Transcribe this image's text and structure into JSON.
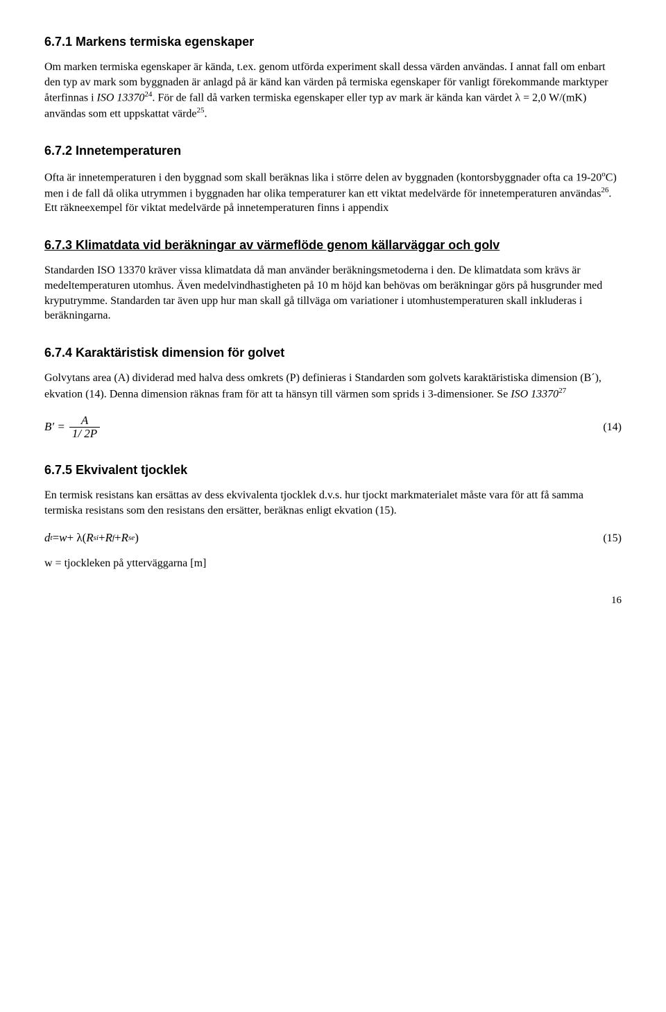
{
  "s1": {
    "heading": "6.7.1 Markens termiska egenskaper",
    "p1_a": "Om marken termiska egenskaper är kända, t.ex. genom utförda experiment skall dessa värden användas. I annat fall om enbart den typ av mark som byggnaden är anlagd på är känd kan värden på termiska egenskaper för vanligt förekommande marktyper återfinnas i ",
    "p1_iso": "ISO 13370",
    "p1_sup1": "24",
    "p1_b": ". För de fall då varken termiska egenskaper eller typ av mark är kända kan värdet λ = 2,0 W/(mK) användas som ett uppskattat värde",
    "p1_sup2": "25",
    "p1_c": "."
  },
  "s2": {
    "heading": "6.7.2 Innetemperaturen",
    "p1_a": "Ofta är innetemperaturen i den byggnad som skall beräknas lika i större delen av byggnaden (kontorsbyggnader ofta ca 19-20",
    "p1_deg": "o",
    "p1_b": "C) men i de fall då olika utrymmen i byggnaden har olika temperaturer kan ett viktat medelvärde för innetemperaturen användas",
    "p1_sup": "26",
    "p1_c": ". Ett räkneexempel för viktat medelvärde på innetemperaturen finns i appendix"
  },
  "s3": {
    "heading": "6.7.3 Klimatdata vid beräkningar av värmeflöde genom källarväggar och golv",
    "p1": "Standarden ISO 13370 kräver vissa klimatdata då man använder beräkningsmetoderna i den. De klimatdata som krävs är medeltemperaturen utomhus. Även medelvindhastigheten på 10 m höjd kan behövas om beräkningar görs på husgrunder med kryputrymme. Standarden tar även upp hur man skall gå tillväga om variationer i utomhustemperaturen skall inkluderas i beräkningarna."
  },
  "s4": {
    "heading": "6.7.4 Karaktäristisk dimension för golvet",
    "p1_a": "Golvytans area (A) dividerad med halva dess omkrets (P) definieras i Standarden som golvets karaktäristiska dimension (B´), ekvation (14). Denna dimension räknas fram för att ta hänsyn till värmen som sprids i 3-dimensioner. Se ",
    "p1_iso": "ISO 13370",
    "p1_sup": "27",
    "eq_lhs": "B′ =",
    "eq_num": "A",
    "eq_den": "1/ 2P",
    "eq_no": "(14)"
  },
  "s5": {
    "heading": "6.7.5 Ekvivalent tjocklek",
    "p1": "En termisk resistans kan ersättas av dess ekvivalenta tjocklek d.v.s. hur tjockt markmaterialet måste vara för att få samma termiska resistans som den resistans den ersätter, beräknas enligt ekvation (15).",
    "eq_dt": "d",
    "eq_t": "t",
    "eq_eq": " = ",
    "eq_w": "w",
    "eq_plus": " + λ(",
    "eq_R1": "R",
    "eq_si": "si",
    "eq_p2": " + ",
    "eq_R2": "R",
    "eq_f": "f",
    "eq_p3": " + ",
    "eq_R3": "R",
    "eq_se": "se",
    "eq_close": ")",
    "eq_no": "(15)",
    "p2": "w = tjockleken på ytterväggarna [m]"
  },
  "pagenum": "16"
}
